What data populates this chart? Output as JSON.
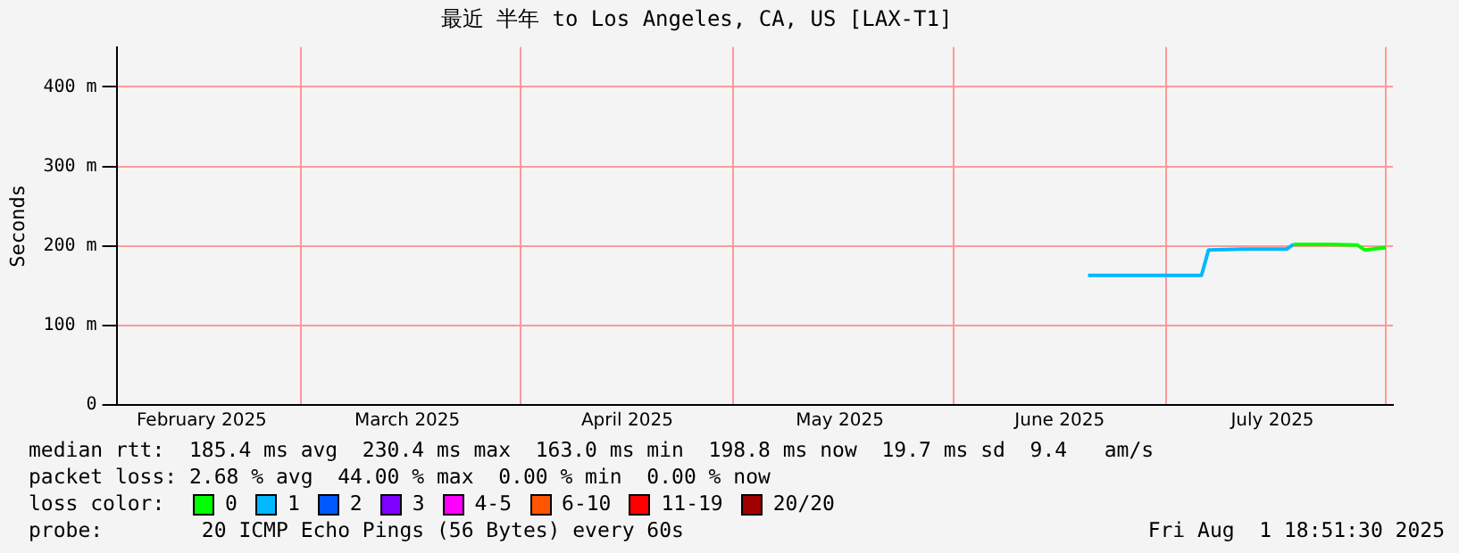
{
  "chart_data": {
    "type": "line",
    "title": "最近 半年 to Los Angeles, CA, US [LAX-T1]",
    "ylabel": "Seconds",
    "series": [
      {
        "color": "#00b8ff",
        "x": [
          "2025-06-20",
          "2025-06-26",
          "2025-07-01",
          "2025-07-06",
          "2025-07-07",
          "2025-07-12",
          "2025-07-18",
          "2025-07-19"
        ],
        "values": [
          163,
          163,
          163,
          163,
          195,
          196,
          196,
          202
        ]
      },
      {
        "color": "#00ff00",
        "x": [
          "2025-07-19",
          "2025-07-24",
          "2025-07-28",
          "2025-07-29",
          "2025-08-01"
        ],
        "values": [
          202,
          202,
          201,
          195,
          198
        ]
      }
    ],
    "xlim": [
      "2025-02-03",
      "2025-08-02"
    ],
    "xticks": [
      {
        "value": "2025-02-15",
        "label": "February 2025"
      },
      {
        "value": "2025-03-01",
        "label": null
      },
      {
        "value": "2025-03-16",
        "label": "March 2025"
      },
      {
        "value": "2025-04-01",
        "label": null
      },
      {
        "value": "2025-04-16",
        "label": "April 2025"
      },
      {
        "value": "2025-05-01",
        "label": null
      },
      {
        "value": "2025-05-16",
        "label": "May 2025"
      },
      {
        "value": "2025-06-01",
        "label": null
      },
      {
        "value": "2025-06-16",
        "label": "June 2025"
      },
      {
        "value": "2025-07-01",
        "label": null
      },
      {
        "value": "2025-07-16",
        "label": "July 2025"
      },
      {
        "value": "2025-08-01",
        "label": null
      }
    ],
    "ylim": [
      0,
      450
    ],
    "yticks": [
      {
        "value": 0,
        "label": "0"
      },
      {
        "value": 100,
        "label": "100 m"
      },
      {
        "value": 200,
        "label": "200 m"
      },
      {
        "value": 300,
        "label": "300 m"
      },
      {
        "value": 400,
        "label": "400 m"
      }
    ],
    "grid": true,
    "marker": "none",
    "line_style": "solid",
    "annotations": [
      "median rtt:  185.4 ms avg  230.4 ms max  163.0 ms min  198.8 ms now  19.7 ms sd  9.4   am/s",
      "packet loss: 2.68 % avg  44.00 % max  0.00 % min  0.00 % now",
      "loss color:",
      "0",
      "1",
      "2",
      "3",
      "4-5",
      "6-10",
      "11-19",
      "20/20",
      "probe:        20 ICMP Echo Pings (56 Bytes) every 60s",
      "Fri Aug  1 18:51:30 2025"
    ]
  }
}
